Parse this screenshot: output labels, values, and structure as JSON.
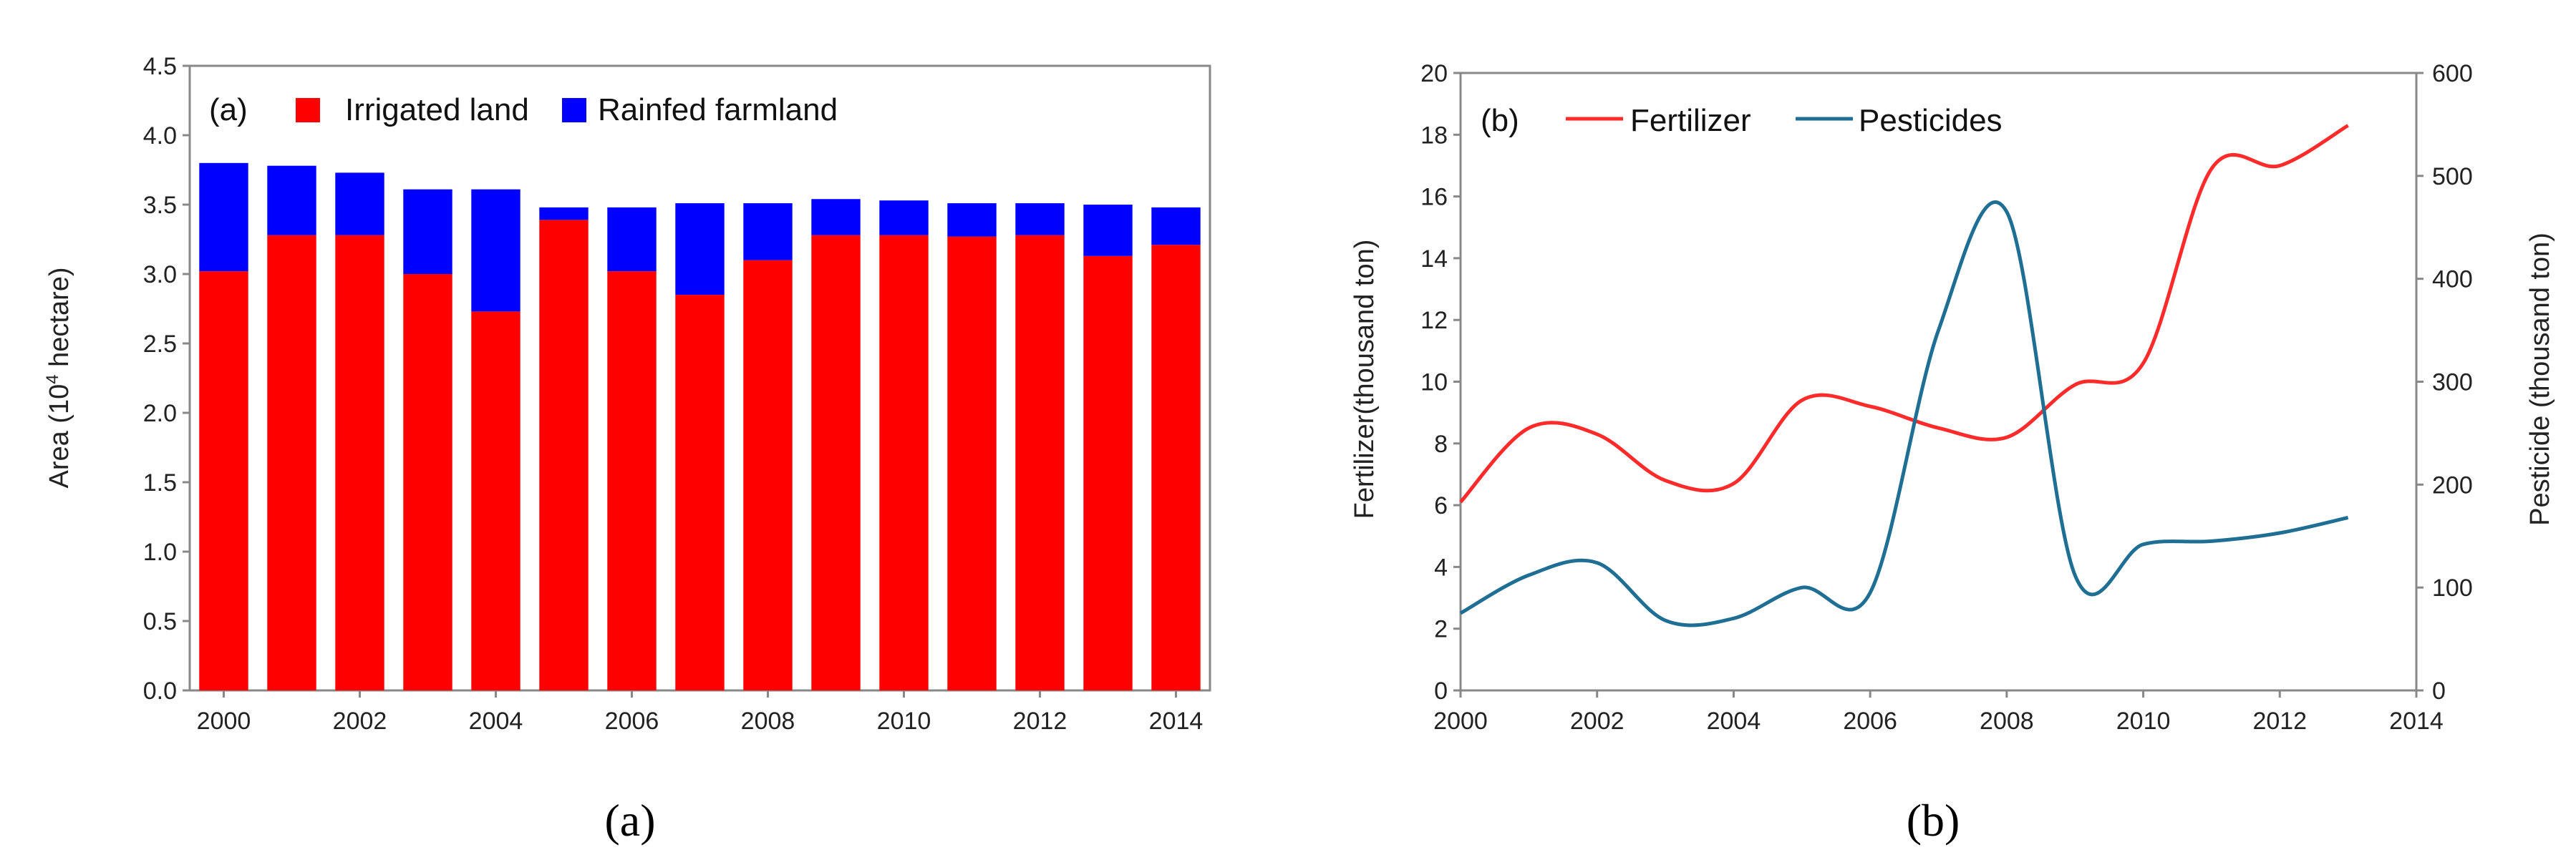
{
  "chart_data": [
    {
      "type": "bar",
      "stacked": true,
      "panel_tag": "(a)",
      "caption": "(a)",
      "ylabel_prefix": "Area (10",
      "ylabel_sup": "4",
      "ylabel_suffix": " hectare)",
      "ylim": [
        0,
        4.5
      ],
      "yticks": [
        "0.0",
        "0.5",
        "1.0",
        "1.5",
        "2.0",
        "2.5",
        "3.0",
        "3.5",
        "4.0",
        "4.5"
      ],
      "xticks": [
        "2000",
        "2002",
        "2004",
        "2006",
        "2008",
        "2010",
        "2012",
        "2014"
      ],
      "categories": [
        "2000",
        "2001",
        "2002",
        "2003",
        "2004",
        "2005",
        "2006",
        "2007",
        "2008",
        "2009",
        "2010",
        "2011",
        "2012",
        "2013",
        "2014"
      ],
      "legend_position": "top-left",
      "series": [
        {
          "name": "Irrigated land",
          "color": "#ff0000",
          "values": [
            3.02,
            3.28,
            3.28,
            3.0,
            2.73,
            3.39,
            3.02,
            2.85,
            3.1,
            3.28,
            3.28,
            3.27,
            3.28,
            3.13,
            3.21
          ]
        },
        {
          "name": "Rainfed farmland",
          "color": "#0000ff",
          "values": [
            0.78,
            0.5,
            0.45,
            0.61,
            0.88,
            0.09,
            0.46,
            0.66,
            0.41,
            0.26,
            0.25,
            0.24,
            0.23,
            0.37,
            0.27
          ]
        }
      ]
    },
    {
      "type": "line",
      "panel_tag": "(b)",
      "caption": "(b)",
      "ylabel": "Fertilizer(thousand ton)",
      "ylabel_right": "Pesticide (thousand ton)",
      "ylim": [
        0,
        20
      ],
      "ylim_right": [
        0,
        600
      ],
      "xlim": [
        2000,
        2014
      ],
      "yticks": [
        "0",
        "2",
        "4",
        "6",
        "8",
        "10",
        "12",
        "14",
        "16",
        "18",
        "20"
      ],
      "yticks_right": [
        "0",
        "100",
        "200",
        "300",
        "400",
        "500",
        "600"
      ],
      "xticks": [
        "2000",
        "2002",
        "2004",
        "2006",
        "2008",
        "2010",
        "2012",
        "2014"
      ],
      "legend_position": "top-left",
      "series": [
        {
          "name": "Fertilizer",
          "color": "#ff2a2a",
          "axis": "left",
          "x": [
            2000,
            2001,
            2002,
            2003,
            2004,
            2005,
            2006,
            2007,
            2008,
            2009,
            2010,
            2011,
            2012,
            2013
          ],
          "values": [
            6.1,
            8.5,
            8.3,
            6.8,
            6.7,
            9.4,
            9.2,
            8.5,
            8.2,
            9.9,
            10.6,
            16.9,
            17.0,
            18.3
          ]
        },
        {
          "name": "Pesticides",
          "color": "#1f6e94",
          "axis": "right",
          "x": [
            2000,
            2001,
            2002,
            2003,
            2004,
            2005,
            2006,
            2007,
            2008,
            2009,
            2010,
            2011,
            2012,
            2013
          ],
          "values": [
            75,
            112,
            124,
            68,
            70,
            100,
            95,
            350,
            465,
            112,
            142,
            145,
            153,
            168
          ]
        }
      ]
    }
  ]
}
